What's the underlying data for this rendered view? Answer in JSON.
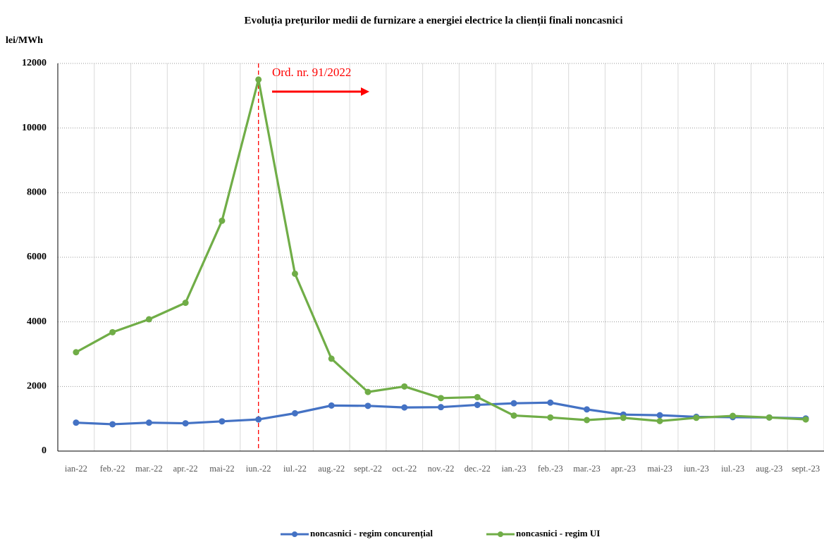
{
  "chart_data": {
    "type": "line",
    "title": "Evoluția prețurilor medii de furnizare a energiei electrice la clienții finali noncasnici",
    "y_label": "lei/MWh",
    "annotation": "Ord. nr. 91/2022",
    "categories": [
      "ian-22",
      "feb.-22",
      "mar.-22",
      "apr.-22",
      "mai-22",
      "iun.-22",
      "iul.-22",
      "aug.-22",
      "sept.-22",
      "oct.-22",
      "nov.-22",
      "dec.-22",
      "ian.-23",
      "feb.-23",
      "mar.-23",
      "apr.-23",
      "mai-23",
      "iun.-23",
      "iul.-23",
      "aug.-23",
      "sept.-23"
    ],
    "series": [
      {
        "name": "noncasnici - regim concurențial",
        "color": "#4472c4",
        "values": [
          880,
          830,
          880,
          860,
          920,
          980,
          1170,
          1410,
          1400,
          1350,
          1360,
          1430,
          1480,
          1500,
          1290,
          1130,
          1110,
          1060,
          1050,
          1040,
          1010
        ]
      },
      {
        "name": "noncasnici - regim UI",
        "color": "#70ad47",
        "values": [
          3060,
          3680,
          4080,
          4590,
          7130,
          11500,
          5490,
          2860,
          1830,
          2000,
          1640,
          1670,
          1100,
          1040,
          960,
          1030,
          930,
          1030,
          1090,
          1040,
          980
        ]
      }
    ],
    "ylim": [
      0,
      12000
    ],
    "yticks": [
      0,
      2000,
      4000,
      6000,
      8000,
      10000,
      12000
    ],
    "grid": true
  }
}
